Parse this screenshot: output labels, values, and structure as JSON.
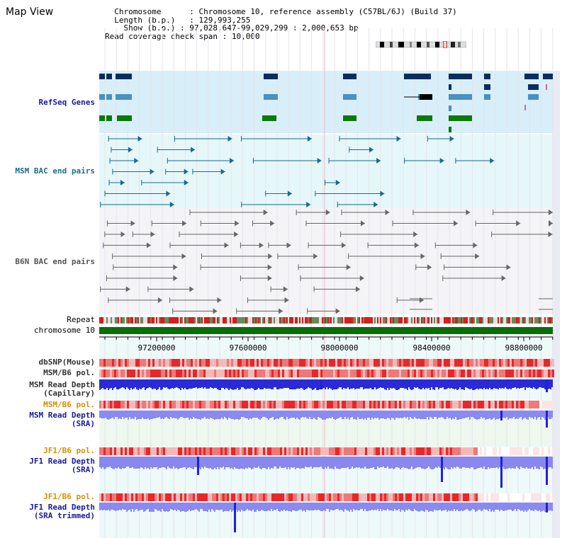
{
  "title": "Map View",
  "info": {
    "chromosome_label": "Chromosome    ",
    "chromosome_value": "Chromosome 10, reference assembly (C57BL/6J) (Build 37)",
    "length_label": "Length (b.p.)",
    "length_value": "129,993,255",
    "show_label": "Show (b.p.)",
    "show_value": "97,028,647-99,029,299 : 2,000,653 bp",
    "coverage_label": "Read coverage check span",
    "coverage_value": "10,000"
  },
  "tracks": {
    "refseq": "RefSeq Genes",
    "msm_bac": "MSM BAC end pairs",
    "b6n_bac": "B6N BAC end pairs",
    "repeat": "Repeat",
    "chromosome": "chromosome 10",
    "dbsnp": "dbSNP(Mouse)",
    "msm_b6_pol_1": "MSM/B6 pol.",
    "msm_depth_cap_1": "MSM Read Depth",
    "msm_depth_cap_2": "(Capillary)",
    "msm_b6_pol_2": "MSM/B6 pol.",
    "msm_depth_sra_1": "MSM Read Depth",
    "msm_depth_sra_2": "(SRA)",
    "jf1_b6_pol_1": "JF1/B6 pol.",
    "jf1_depth_sra_1": "JF1 Read Depth",
    "jf1_depth_sra_2": "(SRA)",
    "jf1_b6_pol_2": "JF1/B6 pol.",
    "jf1_depth_trim_1": "JF1 Read Depth",
    "jf1_depth_trim_2": "(SRA trimmed)"
  },
  "axis": {
    "ticks": [
      "97200000",
      "97600000",
      "98000000",
      "98400000",
      "98800000"
    ]
  },
  "colors": {
    "refseq_bg": "#d8eef8",
    "msm_bg": "#e6f7fa",
    "b6n_bg": "#f4f4f7",
    "gene_dark": "#0b2d5e",
    "gene_light": "#4a90c0",
    "gene_green": "#0a7a0a",
    "chrom_green": "#0a6e0a",
    "depth_blue": "#2020e0",
    "depth_light_blue": "#8a8af0"
  }
}
